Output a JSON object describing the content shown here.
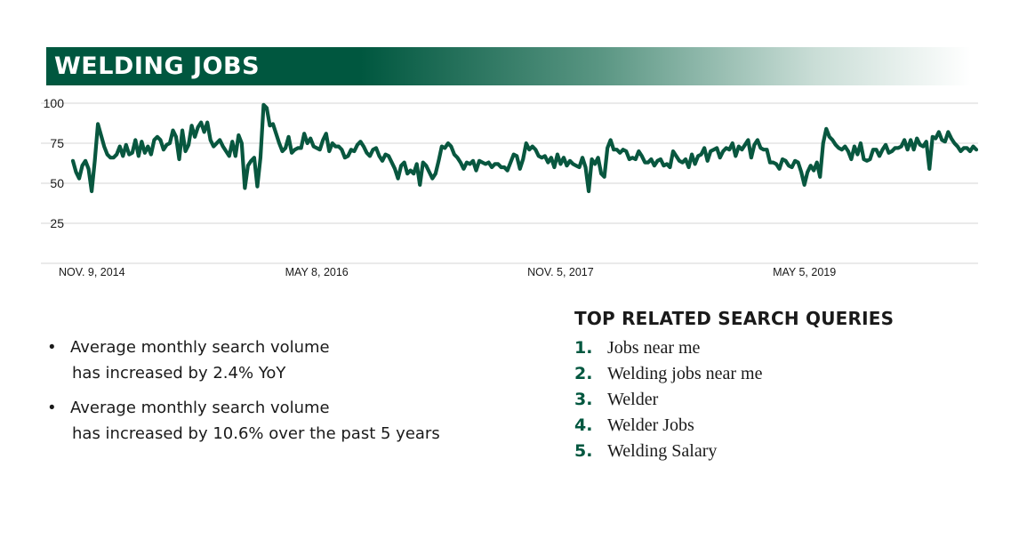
{
  "title": "WELDING JOBS",
  "colors": {
    "accent": "#00573f",
    "line": "#08573f",
    "grid": "#d4d4d4"
  },
  "chart_data": {
    "type": "line",
    "title": "WELDING JOBS",
    "xlabel": "",
    "ylabel": "",
    "ylim": [
      0,
      100
    ],
    "yticks": [
      25,
      50,
      75,
      100
    ],
    "xtick_labels": [
      "NOV. 9, 2014",
      "MAY 8, 2016",
      "NOV. 5, 2017",
      "MAY 5, 2019"
    ],
    "x_start": "2014-11-09",
    "x_step_days": 7,
    "grid": true,
    "series": [
      {
        "values": [
          64,
          57,
          53,
          61,
          64,
          59,
          45,
          64,
          87,
          80,
          73,
          68,
          66,
          66,
          68,
          73,
          67,
          74,
          68,
          69,
          77,
          67,
          76,
          69,
          73,
          68,
          77,
          79,
          77,
          71,
          74,
          75,
          83,
          79,
          65,
          83,
          70,
          74,
          86,
          79,
          85,
          88,
          82,
          88,
          77,
          73,
          75,
          77,
          73,
          70,
          67,
          76,
          67,
          80,
          75,
          47,
          61,
          64,
          66,
          48,
          66,
          99,
          97,
          86,
          87,
          81,
          75,
          70,
          72,
          79,
          69,
          71,
          72,
          72,
          81,
          75,
          78,
          73,
          72,
          71,
          77,
          81,
          70,
          75,
          73,
          73,
          71,
          66,
          67,
          71,
          70,
          74,
          76,
          73,
          69,
          67,
          71,
          72,
          67,
          64,
          68,
          67,
          63,
          59,
          53,
          61,
          63,
          56,
          58,
          56,
          62,
          49,
          63,
          61,
          57,
          53,
          56,
          64,
          73,
          72,
          75,
          73,
          68,
          66,
          63,
          59,
          63,
          62,
          64,
          58,
          64,
          63,
          62,
          63,
          60,
          62,
          62,
          60,
          60,
          58,
          63,
          68,
          67,
          59,
          65,
          75,
          71,
          73,
          71,
          67,
          66,
          67,
          63,
          66,
          60,
          68,
          62,
          66,
          61,
          64,
          62,
          61,
          60,
          66,
          60,
          45,
          65,
          62,
          66,
          56,
          54,
          72,
          77,
          71,
          71,
          69,
          71,
          70,
          65,
          66,
          65,
          70,
          67,
          63,
          63,
          65,
          61,
          64,
          65,
          61,
          62,
          60,
          70,
          67,
          64,
          63,
          65,
          60,
          68,
          62,
          67,
          68,
          72,
          64,
          70,
          71,
          72,
          66,
          70,
          72,
          71,
          75,
          67,
          73,
          71,
          74,
          77,
          66,
          74,
          77,
          72,
          71,
          71,
          63,
          63,
          62,
          59,
          65,
          64,
          61,
          60,
          64,
          63,
          57,
          49,
          57,
          61,
          58,
          63,
          54,
          75,
          84,
          79,
          77,
          74,
          72,
          71,
          73,
          70,
          65,
          73,
          68,
          75,
          65,
          64,
          65,
          71,
          71,
          67,
          71,
          74,
          69,
          70,
          72,
          72,
          73,
          77,
          71,
          77,
          71,
          78,
          74,
          73,
          76,
          59,
          79,
          78,
          82,
          77,
          76,
          82,
          78,
          75,
          73,
          70,
          72,
          72,
          70,
          73,
          71
        ]
      }
    ]
  },
  "bullets": [
    {
      "line1": "Average monthly search volume",
      "line2": "has increased by 2.4% YoY"
    },
    {
      "line1": "Average monthly search volume",
      "line2": "has increased by 10.6% over the past 5 years"
    }
  ],
  "bullet_marker": "•",
  "queries": {
    "heading": "TOP RELATED SEARCH QUERIES",
    "items": [
      {
        "num": "1.",
        "text": "Jobs near me"
      },
      {
        "num": "2.",
        "text": "Welding jobs near me"
      },
      {
        "num": "3.",
        "text": "Welder"
      },
      {
        "num": "4.",
        "text": "Welder Jobs"
      },
      {
        "num": "5.",
        "text": "Welding Salary"
      }
    ]
  }
}
